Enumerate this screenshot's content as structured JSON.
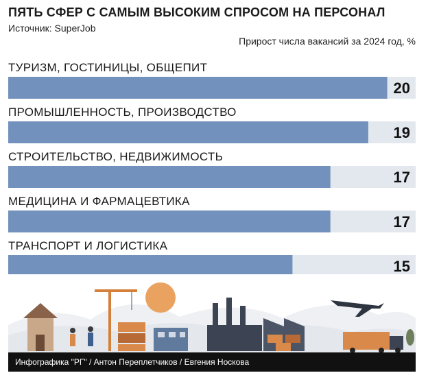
{
  "header": {
    "title": "ПЯТЬ СФЕР С САМЫМ ВЫСОКИМ СПРОСОМ НА ПЕРСОНАЛ",
    "source": "Источник: SuperJob",
    "subtitle": "Прирост числа вакансий за 2024 год, %"
  },
  "footer": {
    "credit": "Инфографика \"РГ\" / Антон Переплетчиков / Евгения Носкова"
  },
  "colors": {
    "bar": "#7391bd",
    "track": "#e3e8ef",
    "footer_bg": "#111111"
  },
  "chart_data": {
    "type": "bar",
    "orientation": "horizontal",
    "categories": [
      "ТУРИЗМ, ГОСТИНИЦЫ, ОБЩЕПИТ",
      "ПРОМЫШЛЕННОСТЬ, ПРОИЗВОДСТВО",
      "СТРОИТЕЛЬСТВО, НЕДВИЖИМОСТЬ",
      "МЕДИЦИНА И ФАРМАЦЕВТИКА",
      "ТРАНСПОРТ И ЛОГИСТИКА"
    ],
    "values": [
      20,
      19,
      17,
      17,
      15
    ],
    "title": "ПЯТЬ СФЕР С САМЫМ ВЫСОКИМ СПРОСОМ НА ПЕРСОНАЛ",
    "subtitle": "Прирост числа вакансий за 2024 год, %",
    "xlim": [
      0,
      21.5
    ]
  }
}
